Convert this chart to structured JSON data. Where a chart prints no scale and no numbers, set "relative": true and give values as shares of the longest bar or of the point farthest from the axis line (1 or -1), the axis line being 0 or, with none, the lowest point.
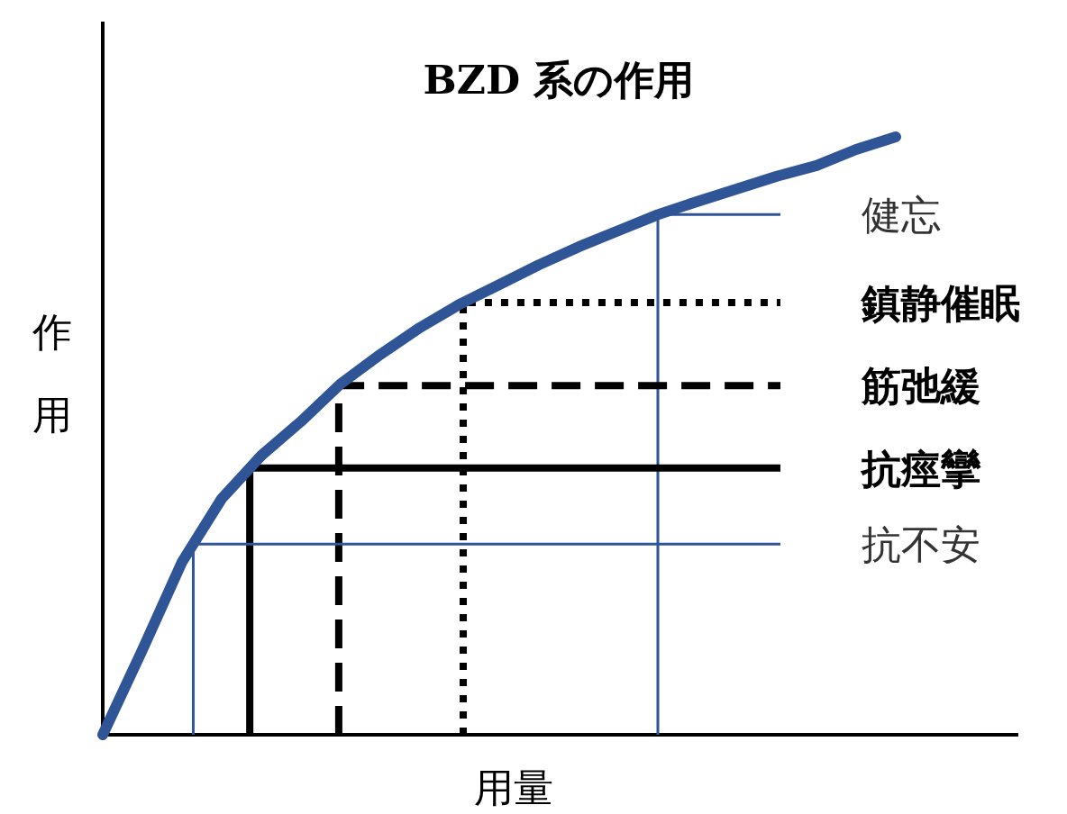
{
  "chart_data": {
    "type": "line",
    "title": "BZD 系の作用",
    "xlabel": "用量",
    "ylabel": "作用",
    "relative": true,
    "marker": "none",
    "categories": [
      null,
      null,
      null,
      null,
      null,
      null,
      null,
      null,
      null,
      null,
      null,
      null,
      null,
      null,
      null,
      null,
      null,
      null,
      null,
      null,
      null
    ],
    "series": [
      {
        "color": "#2f5597",
        "line_style": "solid",
        "values": [
          0,
          0.142,
          0.289,
          0.395,
          0.467,
          0.524,
          0.587,
          0.636,
          0.681,
          0.72,
          0.753,
          0.786,
          0.816,
          0.843,
          0.87,
          0.892,
          0.913,
          0.934,
          0.952,
          0.979,
          1
        ]
      }
    ],
    "ref_lines": [
      {
        "axis": "y",
        "value": 0.87,
        "label": "健忘",
        "color": "#2f5597",
        "line_style": "solid"
      },
      {
        "axis": "y",
        "value": 0.723,
        "label": "鎮静催眠",
        "color": "#000000",
        "line_style": "dotted"
      },
      {
        "axis": "y",
        "value": 0.584,
        "label": "筋弛緩",
        "color": "#000000",
        "line_style": "dashed"
      },
      {
        "axis": "y",
        "value": 0.446,
        "label": "抗痙攣",
        "color": "#000000",
        "line_style": "solid"
      },
      {
        "axis": "y",
        "value": 0.319,
        "label": "抗不安",
        "color": "#2f5597",
        "line_style": "solid"
      }
    ]
  }
}
